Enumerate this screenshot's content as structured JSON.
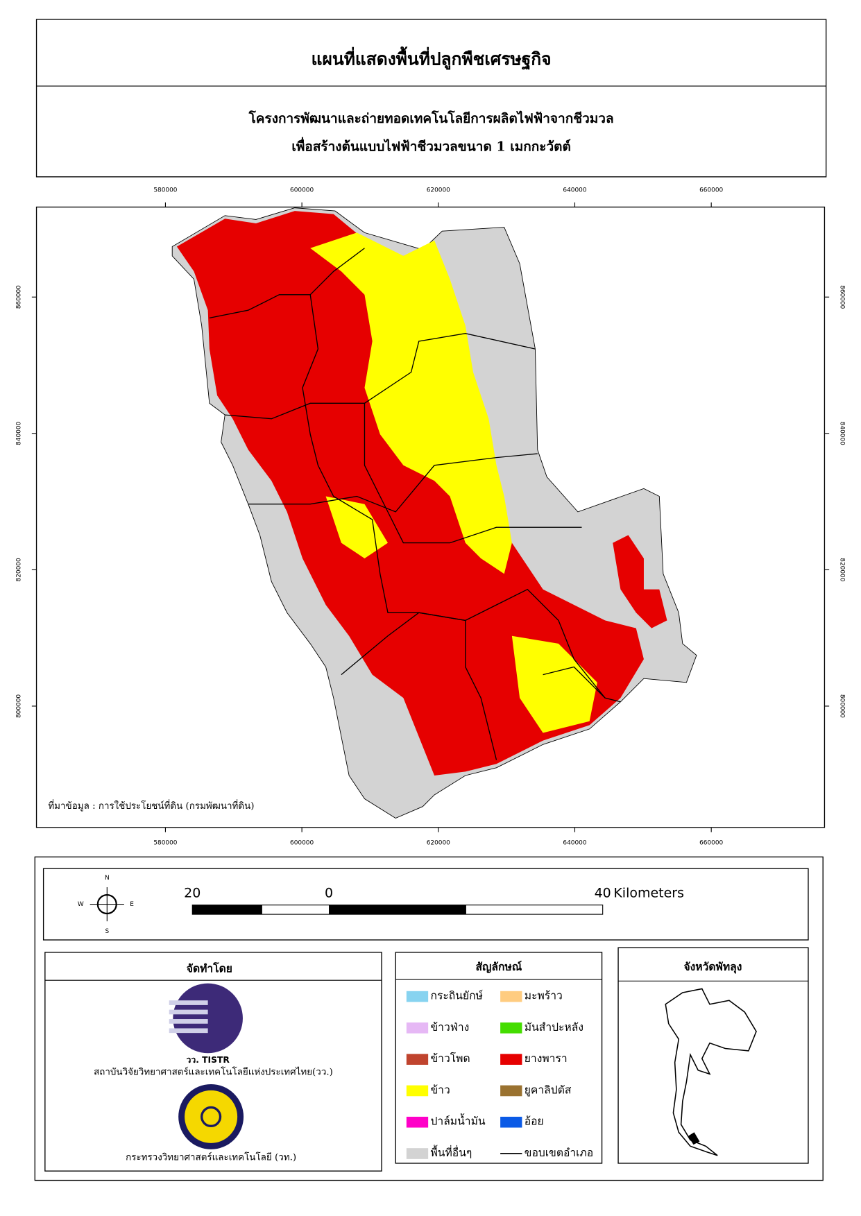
{
  "header": {
    "title": "แผนที่แสดงพื้นที่ปลูกพืชเศรษฐกิจ",
    "subtitle_lines": [
      "โครงการพัฒนาและถ่ายทอดเทคโนโลยีการผลิตไฟฟ้าจากชีวมวล",
      "เพื่อสร้างต้นแบบไฟฟ้าชีวมวลขนาด 1 เมกกะวัตต์"
    ]
  },
  "map": {
    "xlim": [
      561100,
      676600
    ],
    "ylim": [
      782200,
      873200
    ],
    "xticks": [
      580000,
      600000,
      620000,
      640000,
      660000
    ],
    "yticks": [
      860000,
      840000,
      820000,
      800000
    ],
    "source": "ที่มาข้อมูล : การใช้ประโยชน์ที่ดิน  (กรมพัฒนาที่ดิน)"
  },
  "compass": {
    "n": "N",
    "e": "E",
    "s": "S",
    "w": "W"
  },
  "scale_bar": {
    "labels": [
      "20",
      "0",
      "40"
    ],
    "unit": "Kilometers"
  },
  "producer": {
    "title": "จัดทำโดย",
    "logo_text": "วว. TISTR",
    "orgs": [
      "สถาบันวิจัยวิทยาศาสตร์และเทคโนโลยีแห่งประเทศไทย(วว.)",
      "กระทรวงวิทยาศาสตร์และเทคโนโลยี (วท.)"
    ]
  },
  "legend": {
    "title": "สัญลักษณ์",
    "items": [
      {
        "label": "กระถินยักษ์",
        "color": "#87d3f0"
      },
      {
        "label": "ข้าวฟ่าง",
        "color": "#e6b8f5"
      },
      {
        "label": "ข้าวโพด",
        "color": "#c0442e"
      },
      {
        "label": "ข้าว",
        "color": "#ffff00"
      },
      {
        "label": "ปาล์มน้ำมัน",
        "color": "#ff00c8"
      },
      {
        "label": "พื้นที่อื่นๆ",
        "color": "#d3d3d3"
      },
      {
        "label": "มะพร้าว",
        "color": "#ffcc80"
      },
      {
        "label": "มันสำปะหลัง",
        "color": "#44dd00"
      },
      {
        "label": "ยางพารา",
        "color": "#e60000"
      },
      {
        "label": "ยูคาลิปตัส",
        "color": "#9a7230"
      },
      {
        "label": "อ้อย",
        "color": "#0a5ae6"
      },
      {
        "label": "ขอบเขตอำเภอ",
        "color": "#000000"
      }
    ]
  },
  "inset": {
    "title": "จังหวัดพัทลุง"
  }
}
